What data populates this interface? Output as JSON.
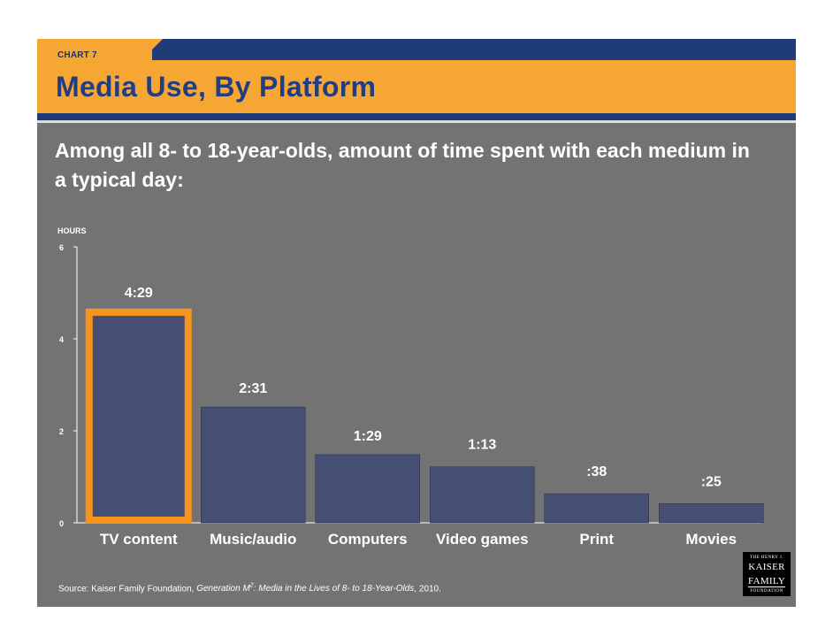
{
  "header": {
    "chart_tag": "CHART 7",
    "title": "Media Use, By Platform",
    "subtitle": "Among all 8- to 18-year-olds, amount of time spent with each medium in a typical day:"
  },
  "chart_data": {
    "type": "bar",
    "ylabel": "HOURS",
    "ylim": [
      0,
      6
    ],
    "yticks": [
      0,
      2,
      4,
      6
    ],
    "categories": [
      "TV content",
      "Music/audio",
      "Computers",
      "Video games",
      "Print",
      "Movies"
    ],
    "values": [
      4.483,
      2.517,
      1.483,
      1.217,
      0.633,
      0.417
    ],
    "data_labels": [
      "4:29",
      "2:31",
      "1:29",
      "1:13",
      ":38",
      ":25"
    ],
    "highlighted_category": "TV content",
    "colors": {
      "bar": "#454f73",
      "highlight": "#f7941d",
      "axis": "#ffffff"
    }
  },
  "source": {
    "prefix": "Source: Kaiser Family Foundation, ",
    "title_part1": "Generation M",
    "superscript": "2",
    "title_part2": ": Media in the Lives of 8- to 18-Year-Olds",
    "suffix": ", 2010."
  },
  "logo": {
    "line1": "THE HENRY J.",
    "line2": "KAISER",
    "line3": "FAMILY",
    "line4": "FOUNDATION"
  }
}
